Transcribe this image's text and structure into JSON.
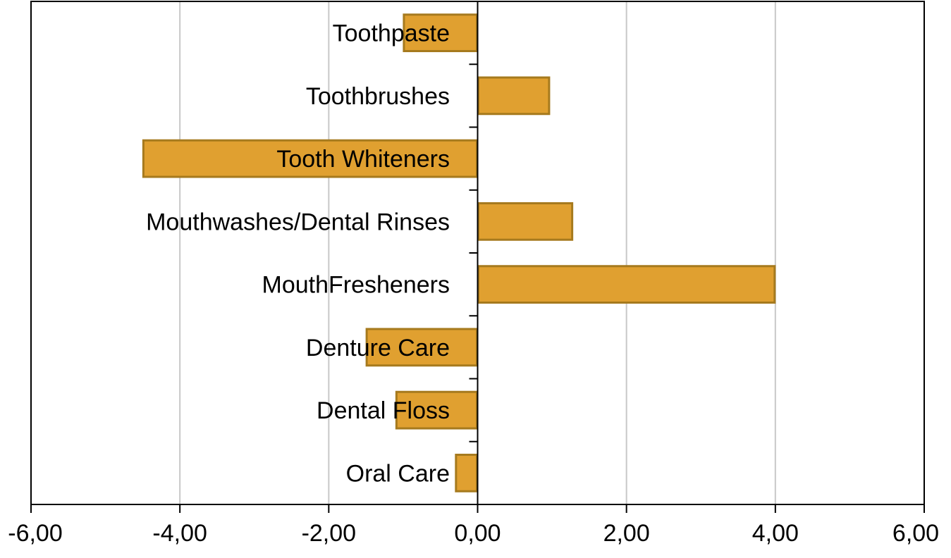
{
  "chart_data": {
    "type": "bar",
    "orientation": "horizontal",
    "categories": [
      "Toothpaste",
      "Toothbrushes",
      "Tooth Whiteners",
      "Mouthwashes/Dental Rinses",
      "MouthFresheners",
      "Denture Care",
      "Dental Floss",
      "Oral Care"
    ],
    "values": [
      -1.0,
      0.97,
      -4.5,
      1.28,
      4.0,
      -1.5,
      -1.1,
      -0.3
    ],
    "title": "",
    "xlabel": "",
    "ylabel": "",
    "xlim": [
      -6,
      6
    ],
    "x_ticks": [
      -6,
      -4,
      -2,
      0,
      2,
      4,
      6
    ],
    "x_tick_labels": [
      "-6,00",
      "-4,00",
      "-2,00",
      "0,00",
      "2,00",
      "4,00",
      "6,00"
    ],
    "grid": "vertical",
    "legend": "none",
    "colors": {
      "bar_fill": "#E0A030",
      "bar_stroke": "#A67A1E",
      "grid": "#C8C8C8",
      "axis": "#000000"
    }
  }
}
